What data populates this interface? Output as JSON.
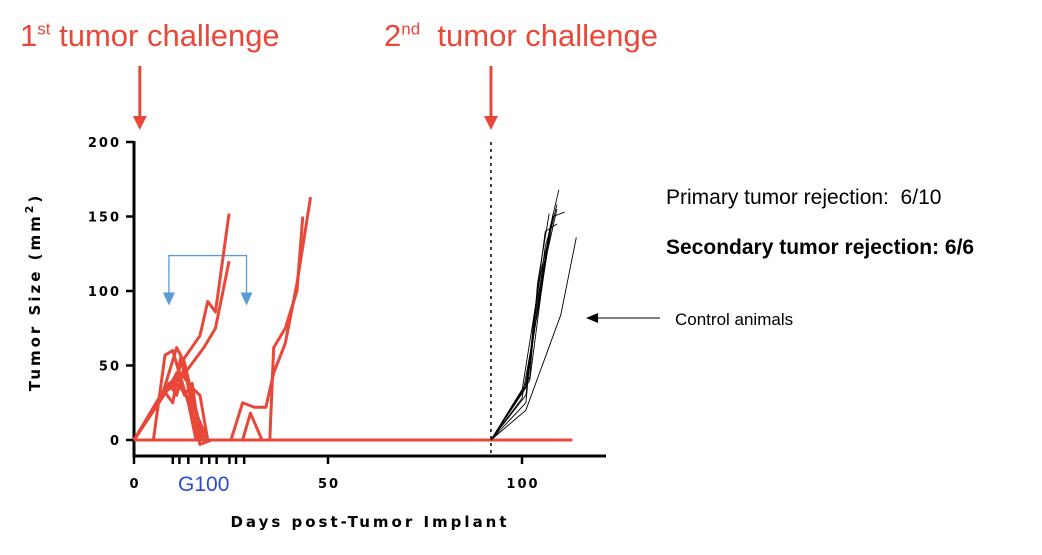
{
  "chart_data": {
    "type": "line",
    "xlabel": "Days post-Tumor Implant",
    "ylabel": "Tumor Size (mm2)",
    "ylabel_main": "Tumor Size (mm",
    "ylabel_sup": "2",
    "ylabel_end": ")",
    "xlim": [
      0,
      122
    ],
    "ylim": [
      0,
      200
    ],
    "xticks": [
      0,
      50,
      100
    ],
    "yticks": [
      0,
      50,
      100,
      150,
      200
    ],
    "grid": false,
    "treatment_label": "G100",
    "treatment_days": [
      10,
      11.7,
      14,
      17.4,
      19.4,
      21.3,
      24.6,
      26.3,
      28.4
    ],
    "treatment_color": "#2a4bd7",
    "second_challenge_day": 92,
    "annotations": {
      "first_challenge": {
        "pre": "1",
        "sup": "st",
        "post": " tumor challenge",
        "day": 1.5
      },
      "second_challenge": {
        "pre": "2",
        "sup": "nd",
        "post": "  tumor challenge",
        "day": 92
      },
      "primary_rejection": "Primary tumor rejection:  6/10",
      "secondary_rejection": "Secondary tumor rejection: 6/6",
      "control_label": "Control animals",
      "bracket_days": [
        9,
        29
      ],
      "bracket_y": 105
    },
    "colors": {
      "treated": "#e8483a",
      "control": "#000000",
      "bracket": "#5b9bd5",
      "annotation": "#e8483a"
    },
    "series_treated": [
      {
        "name": "treated-1",
        "points": [
          [
            0,
            0
          ],
          [
            7,
            30
          ],
          [
            10,
            38
          ],
          [
            13,
            55
          ],
          [
            17,
            70
          ],
          [
            19,
            93
          ],
          [
            21,
            86
          ],
          [
            24.5,
            152
          ]
        ]
      },
      {
        "name": "treated-2",
        "points": [
          [
            0,
            0
          ],
          [
            7,
            30
          ],
          [
            10,
            36
          ],
          [
            14,
            48
          ],
          [
            18,
            62
          ],
          [
            21,
            75
          ],
          [
            24.5,
            120
          ]
        ]
      },
      {
        "name": "treated-3",
        "points": [
          [
            0,
            0
          ],
          [
            5,
            0
          ],
          [
            8,
            57
          ],
          [
            10,
            60
          ],
          [
            12,
            42
          ],
          [
            14,
            25
          ],
          [
            16,
            0
          ],
          [
            113,
            0
          ]
        ]
      },
      {
        "name": "treated-4",
        "points": [
          [
            0,
            0
          ],
          [
            8,
            35
          ],
          [
            12,
            45
          ],
          [
            15,
            35
          ],
          [
            17,
            30
          ],
          [
            19,
            0
          ],
          [
            25,
            0
          ],
          [
            28,
            25
          ],
          [
            31,
            22
          ],
          [
            34,
            22
          ],
          [
            36,
            45
          ],
          [
            39,
            65
          ],
          [
            42,
            105
          ],
          [
            45.5,
            163
          ]
        ]
      },
      {
        "name": "treated-5",
        "points": [
          [
            0,
            0
          ],
          [
            28,
            0
          ],
          [
            30,
            18
          ],
          [
            33,
            0
          ],
          [
            35,
            0
          ],
          [
            36,
            62
          ],
          [
            39,
            75
          ],
          [
            42,
            100
          ],
          [
            43.5,
            150
          ]
        ]
      },
      {
        "name": "treated-6",
        "points": [
          [
            0,
            0
          ],
          [
            7,
            28
          ],
          [
            11,
            62
          ],
          [
            13,
            52
          ],
          [
            15,
            30
          ],
          [
            18,
            0
          ]
        ]
      },
      {
        "name": "treated-7",
        "points": [
          [
            0,
            0
          ],
          [
            8,
            32
          ],
          [
            10,
            25
          ],
          [
            12,
            55
          ],
          [
            14,
            38
          ],
          [
            16,
            18
          ],
          [
            19,
            0
          ]
        ]
      },
      {
        "name": "treated-8",
        "points": [
          [
            0,
            0
          ],
          [
            9,
            35
          ],
          [
            11,
            45
          ],
          [
            13,
            30
          ],
          [
            15,
            38
          ],
          [
            17,
            0
          ]
        ]
      },
      {
        "name": "treated-9",
        "points": [
          [
            0,
            0
          ],
          [
            9,
            38
          ],
          [
            11,
            30
          ],
          [
            13,
            50
          ],
          [
            15,
            20
          ],
          [
            17,
            -3
          ],
          [
            20,
            0
          ]
        ]
      },
      {
        "name": "treated-10",
        "points": [
          [
            0,
            0
          ],
          [
            10,
            40
          ],
          [
            12,
            35
          ],
          [
            14,
            28
          ],
          [
            16,
            10
          ],
          [
            18,
            0
          ]
        ]
      }
    ],
    "series_control": [
      {
        "name": "control-1",
        "points": [
          [
            92,
            0
          ],
          [
            101,
            38
          ],
          [
            108,
            150
          ],
          [
            111,
            153
          ]
        ]
      },
      {
        "name": "control-2",
        "points": [
          [
            92,
            0
          ],
          [
            101,
            35
          ],
          [
            107,
            140
          ],
          [
            109.5,
            168
          ]
        ]
      },
      {
        "name": "control-3",
        "points": [
          [
            92,
            0
          ],
          [
            101,
            30
          ],
          [
            106,
            130
          ],
          [
            108,
            148
          ]
        ]
      },
      {
        "name": "control-4",
        "points": [
          [
            92,
            0
          ],
          [
            100,
            33
          ],
          [
            105,
            115
          ],
          [
            109,
            158
          ]
        ]
      },
      {
        "name": "control-5",
        "points": [
          [
            92,
            0
          ],
          [
            101,
            36
          ],
          [
            104,
            95
          ],
          [
            108,
            150
          ]
        ]
      },
      {
        "name": "control-6",
        "points": [
          [
            92,
            0
          ],
          [
            102,
            40
          ],
          [
            106,
            120
          ],
          [
            109,
            155
          ]
        ]
      },
      {
        "name": "control-7",
        "points": [
          [
            92,
            0
          ],
          [
            101,
            25
          ],
          [
            103,
            80
          ],
          [
            106,
            140
          ],
          [
            109,
            145
          ]
        ]
      },
      {
        "name": "control-8",
        "points": [
          [
            92,
            0
          ],
          [
            100,
            28
          ],
          [
            105,
            100
          ],
          [
            108,
            152
          ]
        ]
      },
      {
        "name": "control-9",
        "points": [
          [
            92,
            0
          ],
          [
            101,
            20
          ],
          [
            110,
            84
          ],
          [
            114,
            136
          ]
        ]
      },
      {
        "name": "control-10",
        "points": [
          [
            92,
            0
          ],
          [
            102,
            42
          ],
          [
            104,
            105
          ],
          [
            107,
            152
          ]
        ]
      }
    ]
  }
}
